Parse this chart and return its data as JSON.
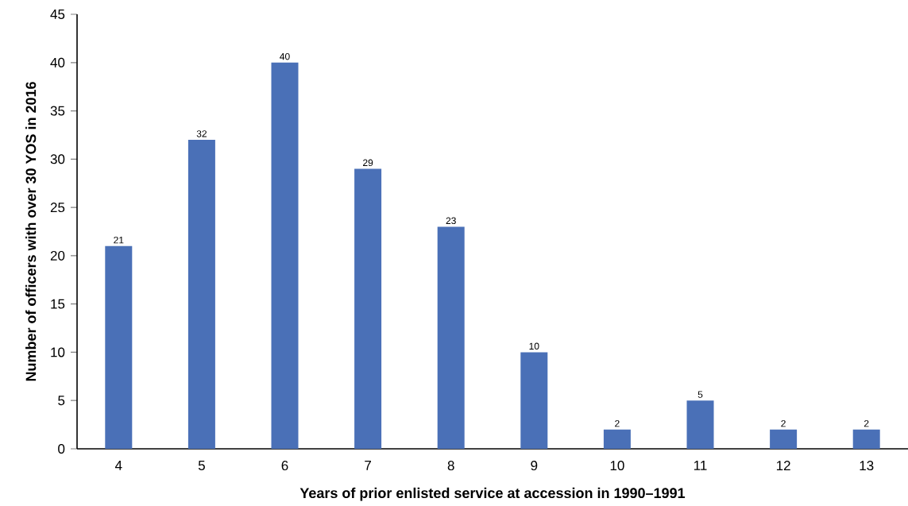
{
  "chart_data": {
    "type": "bar",
    "xlabel": "Years of prior enlisted service at accession in 1990–1991",
    "ylabel": "Number of officers with over 30 YOS in 2016",
    "categories": [
      "4",
      "5",
      "6",
      "7",
      "8",
      "9",
      "10",
      "11",
      "12",
      "13"
    ],
    "values": [
      21,
      32,
      40,
      29,
      23,
      10,
      2,
      5,
      2,
      2
    ],
    "color": "#4a70b7",
    "data_labels": true,
    "ylim": [
      0,
      45
    ],
    "yticks": [
      0,
      5,
      10,
      15,
      20,
      25,
      30,
      35,
      40,
      45
    ],
    "grid": false
  }
}
